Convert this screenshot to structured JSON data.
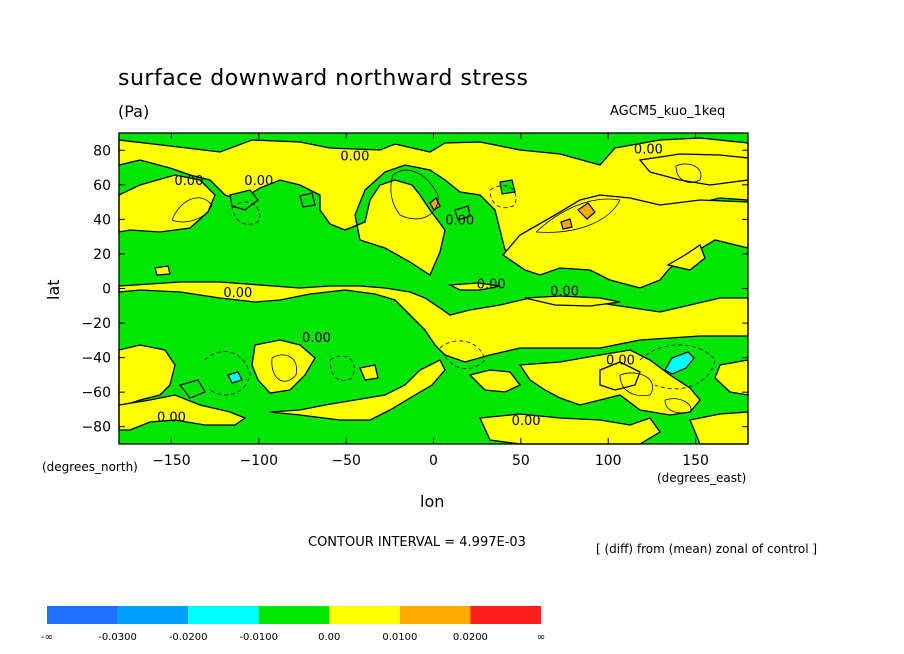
{
  "chart_data": {
    "type": "heatmap",
    "title": "surface downward northward stress",
    "units": "(Pa)",
    "model_label": "AGCM5_kuo_1keq",
    "xlabel": "lon",
    "ylabel": "lat",
    "x_units": "(degrees_east)",
    "y_units": "(degrees_north)",
    "xlim": [
      -180,
      180
    ],
    "ylim": [
      -90,
      90
    ],
    "x_ticks": [
      -150,
      -100,
      -50,
      0,
      50,
      100,
      150
    ],
    "x_tick_labels": [
      "−150",
      "−100",
      "−50",
      "0",
      "50",
      "100",
      "150"
    ],
    "y_ticks": [
      80,
      60,
      40,
      20,
      0,
      -20,
      -40,
      -60,
      -80
    ],
    "y_tick_labels": [
      "80",
      "60",
      "40",
      "20",
      "0",
      "−20",
      "−40",
      "−60",
      "−80"
    ],
    "contour_interval_text": "CONTOUR INTERVAL = 4.997E-03",
    "note": "[ (diff) from (mean) zonal of control ]",
    "contour_labels": [
      {
        "text": "0.00",
        "lon": -140,
        "lat": 60
      },
      {
        "text": "0.00",
        "lon": -100,
        "lat": 60
      },
      {
        "text": "0.00",
        "lon": -45,
        "lat": 74
      },
      {
        "text": "0.00",
        "lon": 15,
        "lat": 37
      },
      {
        "text": "0.00",
        "lon": 123,
        "lat": 78
      },
      {
        "text": "0.00",
        "lon": -112,
        "lat": -5
      },
      {
        "text": "0.00",
        "lon": 33,
        "lat": 0
      },
      {
        "text": "0.00",
        "lon": 75,
        "lat": -4
      },
      {
        "text": "0.00",
        "lon": -67,
        "lat": -31
      },
      {
        "text": "0.00",
        "lon": 107,
        "lat": -44
      },
      {
        "text": "0.00",
        "lon": -150,
        "lat": -77
      },
      {
        "text": "0.00",
        "lon": 53,
        "lat": -79
      }
    ],
    "colorbar": {
      "bins": [
        {
          "color": "#1e6eff",
          "label": "-∞"
        },
        {
          "color": "#00a0ff",
          "label": "-0.0300"
        },
        {
          "color": "#00ffff",
          "label": "-0.0200"
        },
        {
          "color": "#00e600",
          "label": "-0.0100"
        },
        {
          "color": "#ffff00",
          "label": "0.00"
        },
        {
          "color": "#ffaa00",
          "label": "0.0100"
        },
        {
          "color": "#ff1e1e",
          "label": "0.0200"
        }
      ],
      "end_label": "∞"
    },
    "colors": {
      "negative_fill": "#00e600",
      "positive_fill": "#ffff00",
      "strong_positive_fill": "#ffaa00",
      "strong_negative_fill": "#00ffff"
    }
  }
}
